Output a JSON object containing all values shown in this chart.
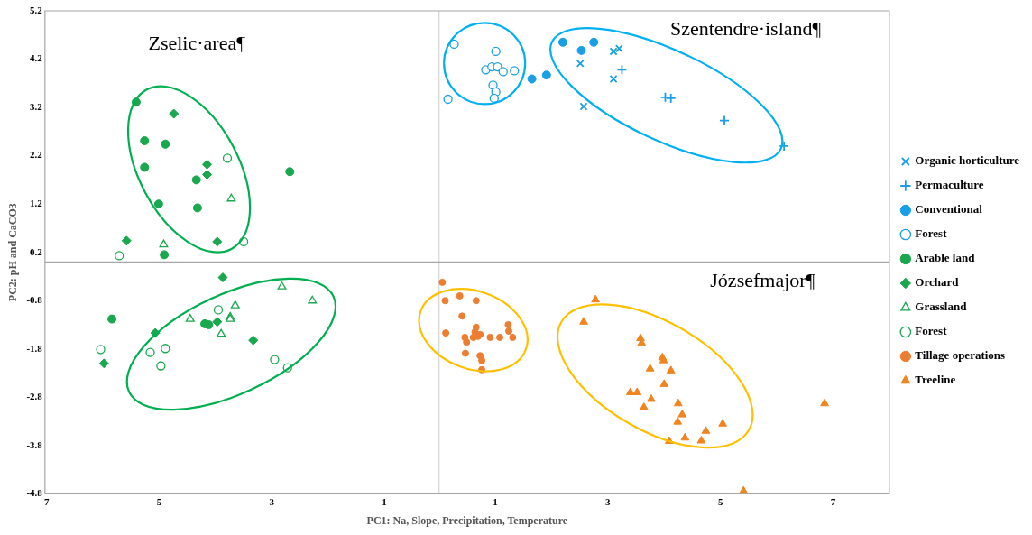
{
  "chart_data": {
    "type": "scatter",
    "xlabel": "PC1: Na, Slope, Precipitation, Temperature",
    "ylabel": "PC2: pH and CaCO3",
    "xlim": [
      -7,
      8
    ],
    "xticks": [
      -7,
      -5,
      -3,
      -1,
      1,
      3,
      5,
      7
    ],
    "ylim": [
      -4.8,
      5.2
    ],
    "yticks": [
      -4.8,
      -3.8,
      -2.8,
      -1.8,
      -0.8,
      0.2,
      1.2,
      2.2,
      3.2,
      4.2,
      5.2
    ],
    "grid": false,
    "legend": "right",
    "ref_lines": [
      {
        "axis": "x",
        "value": 0,
        "label": null,
        "color": "#d9d9d9"
      },
      {
        "axis": "y",
        "value": 0,
        "label": null,
        "color": "#a6a6a6"
      }
    ],
    "annotations": [
      "Zselic·area¶",
      "Szentendre·island¶",
      "Józsefmajor¶"
    ],
    "series": [
      {
        "name": "Organic horticulture",
        "color": "#1a9fe6",
        "marker": "x",
        "x": [
          3.1,
          3.2,
          2.51,
          3.1,
          2.57
        ],
        "values": [
          4.36,
          4.42,
          4.11,
          3.79,
          3.22
        ]
      },
      {
        "name": "Permaculture",
        "color": "#1a9fe6",
        "marker": "cross",
        "x": [
          3.25,
          4.02,
          4.12,
          5.07,
          6.13
        ],
        "values": [
          3.98,
          3.41,
          3.39,
          2.93,
          2.4
        ]
      },
      {
        "name": "Conventional",
        "color": "#1a9fe6",
        "marker": "circle",
        "x": [
          2.2,
          2.53,
          2.75,
          1.65,
          1.91
        ],
        "values": [
          4.55,
          4.38,
          4.55,
          3.79,
          3.87
        ]
      },
      {
        "name": "Forest",
        "color": "#1a9fe6",
        "marker": "circle-open",
        "x": [
          0.27,
          1.01,
          0.83,
          0.94,
          1.04,
          1.14,
          1.34,
          0.96,
          1.01,
          0.98,
          0.16
        ],
        "values": [
          4.51,
          4.36,
          3.98,
          4.04,
          4.04,
          3.94,
          3.96,
          3.66,
          3.52,
          3.39,
          3.37
        ]
      },
      {
        "name": "Arable land",
        "color": "#19a84e",
        "marker": "circle",
        "x": [
          -5.38,
          -5.23,
          -4.86,
          -5.23,
          -4.31,
          -4.98,
          -4.29,
          -2.65,
          -4.88,
          -5.81,
          -4.09,
          -4.16
        ],
        "values": [
          3.31,
          2.51,
          2.44,
          1.96,
          1.7,
          1.2,
          1.12,
          1.87,
          0.15,
          -1.18,
          -1.3,
          -1.28
        ]
      },
      {
        "name": "Orchard",
        "color": "#19a84e",
        "marker": "diamond",
        "x": [
          -4.71,
          -4.12,
          -4.12,
          -5.55,
          -3.94,
          -3.84,
          -3.94,
          -5.04,
          -3.3,
          -5.95
        ],
        "values": [
          3.07,
          2.02,
          1.81,
          0.44,
          0.42,
          -0.32,
          -1.24,
          -1.47,
          -1.62,
          -2.1
        ]
      },
      {
        "name": "Grassland",
        "color": "#19a84e",
        "marker": "triangle-open",
        "x": [
          -3.69,
          -4.89,
          -2.79,
          -2.25,
          -3.62,
          -4.42,
          -3.71,
          -3.71,
          -3.87
        ],
        "values": [
          1.31,
          0.36,
          -0.51,
          -0.8,
          -0.9,
          -1.18,
          -1.14,
          -1.18,
          -1.49
        ]
      },
      {
        "name": "Forest",
        "color": "#19a84e",
        "marker": "circle-open",
        "x": [
          -3.76,
          -3.47,
          -5.68,
          -3.92,
          -6.01,
          -5.13,
          -4.86,
          -4.94,
          -2.92,
          -2.69
        ],
        "values": [
          2.15,
          0.42,
          0.13,
          -0.99,
          -1.81,
          -1.87,
          -1.79,
          -2.15,
          -2.02,
          -2.19
        ]
      },
      {
        "name": "Tillage operations",
        "color": "#ed7d31",
        "marker": "circle",
        "x": [
          0.06,
          0.11,
          0.37,
          0.66,
          0.41,
          0.12,
          0.46,
          0.49,
          0.61,
          0.66,
          0.64,
          0.69,
          0.73,
          0.91,
          1.08,
          1.23,
          1.24,
          1.31,
          0.47,
          0.73,
          0.76,
          0.76
        ],
        "values": [
          -0.42,
          -0.8,
          -0.7,
          -0.8,
          -1.12,
          -1.47,
          -1.56,
          -1.66,
          -1.56,
          -1.35,
          -1.45,
          -1.54,
          -1.5,
          -1.56,
          -1.56,
          -1.3,
          -1.43,
          -1.56,
          -1.89,
          -1.94,
          -2.04,
          -2.23
        ]
      },
      {
        "name": "Treeline",
        "color": "#f0841e",
        "marker": "triangle",
        "x": [
          2.78,
          2.57,
          3.58,
          3.6,
          3.97,
          3.99,
          3.75,
          4.12,
          4.0,
          3.4,
          3.52,
          3.77,
          3.64,
          4.25,
          4.32,
          4.24,
          5.04,
          4.74,
          4.66,
          4.37,
          4.09,
          6.85,
          5.41
        ],
        "values": [
          -0.78,
          -1.24,
          -1.58,
          -1.68,
          -1.98,
          -2.04,
          -2.21,
          -2.25,
          -2.53,
          -2.7,
          -2.7,
          -2.84,
          -3.01,
          -2.93,
          -3.16,
          -3.31,
          -3.35,
          -3.5,
          -3.7,
          -3.64,
          -3.71,
          -2.93,
          -4.74
        ]
      }
    ]
  }
}
